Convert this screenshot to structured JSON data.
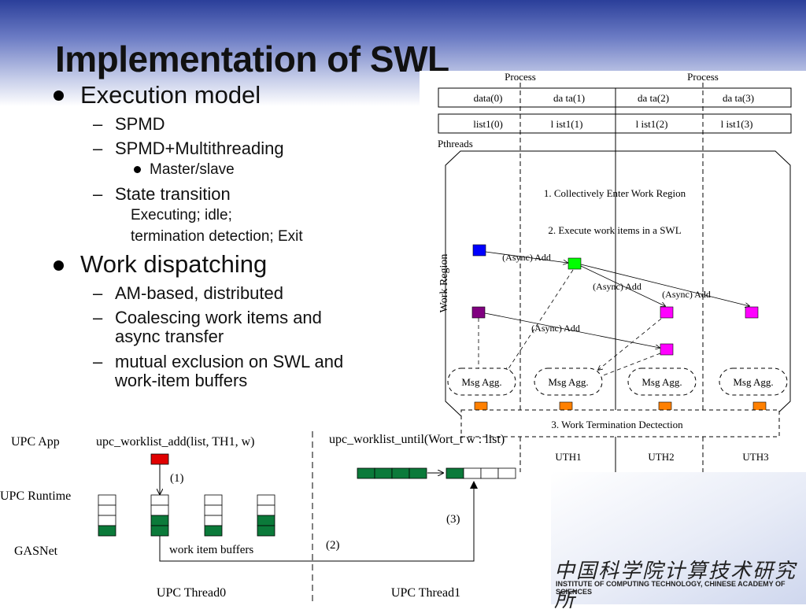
{
  "slide": {
    "title": "Implementation of SWL",
    "bullets": {
      "execution_model": "Execution model",
      "spmd": "SPMD",
      "spmd_mt": "SPMD+Multithreading",
      "master_slave": "Master/slave",
      "state_transition": "State transition",
      "executing_idle": "Executing; idle;",
      "termination": "termination detection; Exit",
      "work_dispatching": "Work dispatching",
      "am_based": "AM-based, distributed",
      "coalescing_1": "Coalescing work items and",
      "coalescing_2": "async transfer",
      "mutual_1": "mutual exclusion on SWL and",
      "mutual_2": "work-item buffers"
    },
    "dash": "–"
  },
  "top_diagram": {
    "process_labels": [
      "Process",
      "Process"
    ],
    "data_cells": [
      "data(0)",
      "da ta(1)",
      "da ta(2)",
      "da ta(3)"
    ],
    "list_cells": [
      "list1(0)",
      "l ist1(1)",
      "l ist1(2)",
      "l ist1(3)"
    ],
    "pthreads": "Pthreads",
    "work_region": "Work Region",
    "step1": "1. Collectively Enter Work Region",
    "step2": "2. Execute work items in a SWL",
    "step3": "3. Work Termination Dectection",
    "async_labels": [
      "(Async) Add",
      "(Async) Add",
      "(Async) Add",
      "(Async) Add"
    ],
    "msg_agg": [
      "Msg Agg.",
      "Msg Agg.",
      "Msg Agg.",
      "Msg Agg."
    ],
    "uth_labels": [
      "UTH1",
      "UTH2",
      "UTH3"
    ],
    "colors": {
      "blue": "#0000ff",
      "green": "#00ff00",
      "magenta": "#ff00ff",
      "purple": "#800080",
      "orange": "#ff8000"
    }
  },
  "bottom_diagram": {
    "upc_app": "UPC App",
    "upc_runtime": "UPC Runtime",
    "gasnet": "GASNet",
    "add_call": "upc_worklist_add(list, TH1, w)",
    "until_call": "upc_worklist_until(Wort_t w : list)",
    "step_1": "(1)",
    "step_2": "(2)",
    "step_3": "(3)",
    "buffers": "work item buffers",
    "thread0": "UPC Thread0",
    "thread1": "UPC Thread1",
    "colors": {
      "green": "#0b7a3a",
      "red": "#e00000"
    }
  },
  "logo": {
    "chinese": "中国科学院计算技术研究所",
    "english": "INSTITUTE OF COMPUTING TECHNOLOGY, CHINESE ACADEMY OF SCIENCES"
  }
}
